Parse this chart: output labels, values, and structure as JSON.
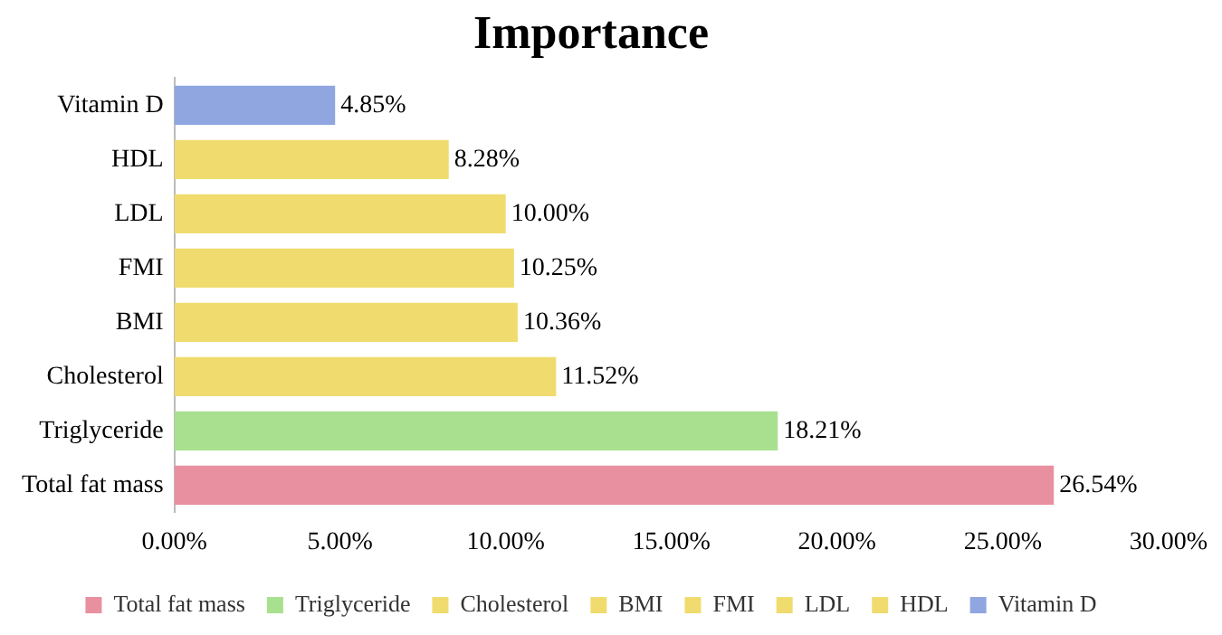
{
  "chart_data": {
    "type": "bar",
    "title": "Importance",
    "orientation": "horizontal",
    "categories": [
      "Vitamin D",
      "HDL",
      "LDL",
      "FMI",
      "BMI",
      "Cholesterol",
      "Triglyceride",
      "Total fat mass"
    ],
    "series": [
      {
        "name": "Total fat mass",
        "color": "#e8909f",
        "values": [
          null,
          null,
          null,
          null,
          null,
          null,
          null,
          26.54
        ],
        "value_labels": [
          null,
          null,
          null,
          null,
          null,
          null,
          null,
          "26.54%"
        ]
      },
      {
        "name": "Triglyceride",
        "color": "#a9e08f",
        "values": [
          null,
          null,
          null,
          null,
          null,
          null,
          18.21,
          null
        ],
        "value_labels": [
          null,
          null,
          null,
          null,
          null,
          null,
          "18.21%",
          null
        ]
      },
      {
        "name": "Cholesterol",
        "color": "#f0dc6e",
        "values": [
          null,
          null,
          null,
          null,
          null,
          11.52,
          null,
          null
        ],
        "value_labels": [
          null,
          null,
          null,
          null,
          null,
          "11.52%",
          null,
          null
        ]
      },
      {
        "name": "BMI",
        "color": "#f0dc6e",
        "values": [
          null,
          null,
          null,
          null,
          10.36,
          null,
          null,
          null
        ],
        "value_labels": [
          null,
          null,
          null,
          null,
          "10.36%",
          null,
          null,
          null
        ]
      },
      {
        "name": "FMI",
        "color": "#f0dc6e",
        "values": [
          null,
          null,
          null,
          10.25,
          null,
          null,
          null,
          null
        ],
        "value_labels": [
          null,
          null,
          null,
          "10.25%",
          null,
          null,
          null,
          null
        ]
      },
      {
        "name": "LDL",
        "color": "#f0dc6e",
        "values": [
          null,
          null,
          10.0,
          null,
          null,
          null,
          null,
          null
        ],
        "value_labels": [
          null,
          null,
          "10.00%",
          null,
          null,
          null,
          null,
          null
        ]
      },
      {
        "name": "HDL",
        "color": "#f0dc6e",
        "values": [
          null,
          8.28,
          null,
          null,
          null,
          null,
          null,
          null
        ],
        "value_labels": [
          null,
          "8.28%",
          null,
          null,
          null,
          null,
          null,
          null
        ]
      },
      {
        "name": "Vitamin D",
        "color": "#8fa6e0",
        "values": [
          4.85,
          null,
          null,
          null,
          null,
          null,
          null,
          null
        ],
        "value_labels": [
          "4.85%",
          null,
          null,
          null,
          null,
          null,
          null,
          null
        ]
      }
    ],
    "xlim": [
      0,
      30
    ],
    "xticks": [
      {
        "value": 0,
        "label": "0.00%"
      },
      {
        "value": 5,
        "label": "5.00%"
      },
      {
        "value": 10,
        "label": "10.00%"
      },
      {
        "value": 15,
        "label": "15.00%"
      },
      {
        "value": 20,
        "label": "20.00%"
      },
      {
        "value": 25,
        "label": "25.00%"
      },
      {
        "value": 30,
        "label": "30.00%"
      }
    ],
    "grid": false,
    "legend": "bottom"
  }
}
